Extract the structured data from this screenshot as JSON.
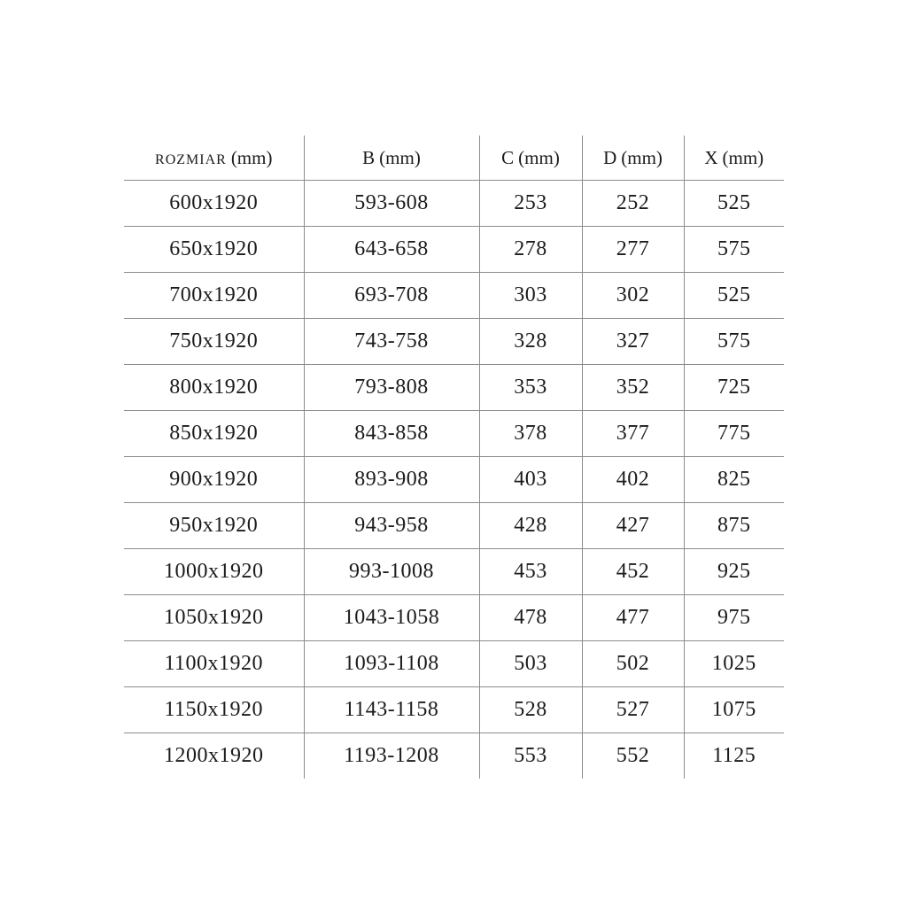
{
  "style": {
    "background": "#ffffff",
    "text_color": "#1b1b1b",
    "grid_line_color": "#8c8c8c"
  },
  "chart_data": {
    "type": "table",
    "title": "",
    "layout": {
      "outer_border": false,
      "column_separators": true,
      "row_separators": true,
      "bottom_border": false
    },
    "columns": [
      {
        "key": "rozmiar",
        "name": "ROZMIAR",
        "unit": "(mm)"
      },
      {
        "key": "b",
        "name": "B",
        "unit": "(mm)"
      },
      {
        "key": "c",
        "name": "C",
        "unit": "(mm)"
      },
      {
        "key": "d",
        "name": "D",
        "unit": "(mm)"
      },
      {
        "key": "x",
        "name": "X",
        "unit": "(mm)"
      }
    ],
    "rows": [
      [
        "600x1920",
        "593-608",
        "253",
        "252",
        "525"
      ],
      [
        "650x1920",
        "643-658",
        "278",
        "277",
        "575"
      ],
      [
        "700x1920",
        "693-708",
        "303",
        "302",
        "525"
      ],
      [
        "750x1920",
        "743-758",
        "328",
        "327",
        "575"
      ],
      [
        "800x1920",
        "793-808",
        "353",
        "352",
        "725"
      ],
      [
        "850x1920",
        "843-858",
        "378",
        "377",
        "775"
      ],
      [
        "900x1920",
        "893-908",
        "403",
        "402",
        "825"
      ],
      [
        "950x1920",
        "943-958",
        "428",
        "427",
        "875"
      ],
      [
        "1000x1920",
        "993-1008",
        "453",
        "452",
        "925"
      ],
      [
        "1050x1920",
        "1043-1058",
        "478",
        "477",
        "975"
      ],
      [
        "1100x1920",
        "1093-1108",
        "503",
        "502",
        "1025"
      ],
      [
        "1150x1920",
        "1143-1158",
        "528",
        "527",
        "1075"
      ],
      [
        "1200x1920",
        "1193-1208",
        "553",
        "552",
        "1125"
      ]
    ]
  }
}
